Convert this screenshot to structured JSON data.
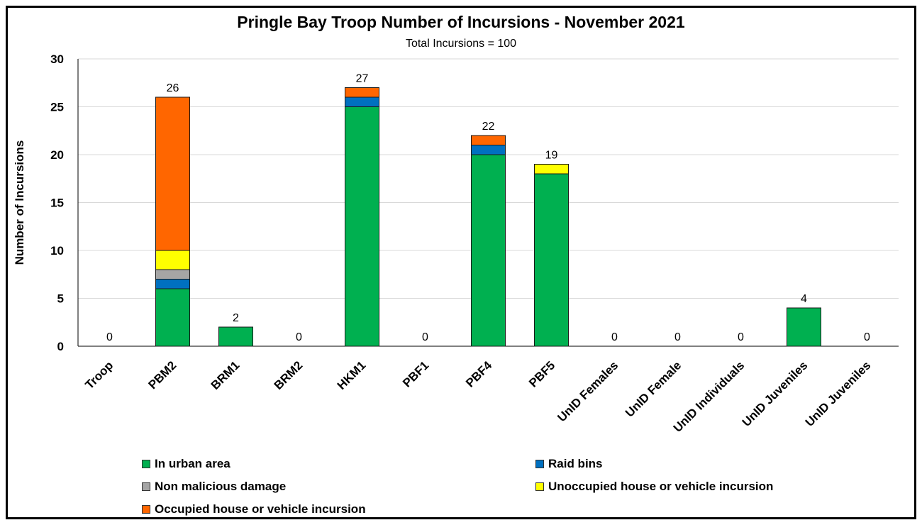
{
  "chart_data": {
    "type": "bar",
    "stacked": true,
    "title": "Pringle Bay Troop Number of Incursions - November 2021",
    "subtitle": "Total Incursions = 100",
    "xlabel": "",
    "ylabel": "Number of Incursions",
    "ylim": [
      0,
      30
    ],
    "yticks": [
      0,
      5,
      10,
      15,
      20,
      25,
      30
    ],
    "grid": true,
    "legend_position": "bottom",
    "categories": [
      "Troop",
      "PBM2",
      "BRM1",
      "BRM2",
      "HKM1",
      "PBF1",
      "PBF4",
      "PBF5",
      "UnID Females",
      "UnID Female",
      "UnID Individuals",
      "UnID Juveniles",
      "UnID Juveniles"
    ],
    "series": [
      {
        "name": "In urban area",
        "color": "#00b050",
        "values": [
          0,
          6,
          2,
          0,
          25,
          0,
          20,
          18,
          0,
          0,
          0,
          4,
          0
        ]
      },
      {
        "name": "Raid bins",
        "color": "#0070c0",
        "values": [
          0,
          1,
          0,
          0,
          1,
          0,
          1,
          0,
          0,
          0,
          0,
          0,
          0
        ]
      },
      {
        "name": "Non malicious damage",
        "color": "#a5a5a5",
        "values": [
          0,
          1,
          0,
          0,
          0,
          0,
          0,
          0,
          0,
          0,
          0,
          0,
          0
        ]
      },
      {
        "name": "Unoccupied house or vehicle incursion",
        "color": "#ffff00",
        "values": [
          0,
          2,
          0,
          0,
          0,
          0,
          0,
          1,
          0,
          0,
          0,
          0,
          0
        ]
      },
      {
        "name": "Occupied house or vehicle incursion",
        "color": "#ff6600",
        "values": [
          0,
          16,
          0,
          0,
          1,
          0,
          1,
          0,
          0,
          0,
          0,
          0,
          0
        ]
      }
    ],
    "totals": [
      0,
      26,
      2,
      0,
      27,
      0,
      22,
      19,
      0,
      0,
      0,
      4,
      0
    ]
  }
}
